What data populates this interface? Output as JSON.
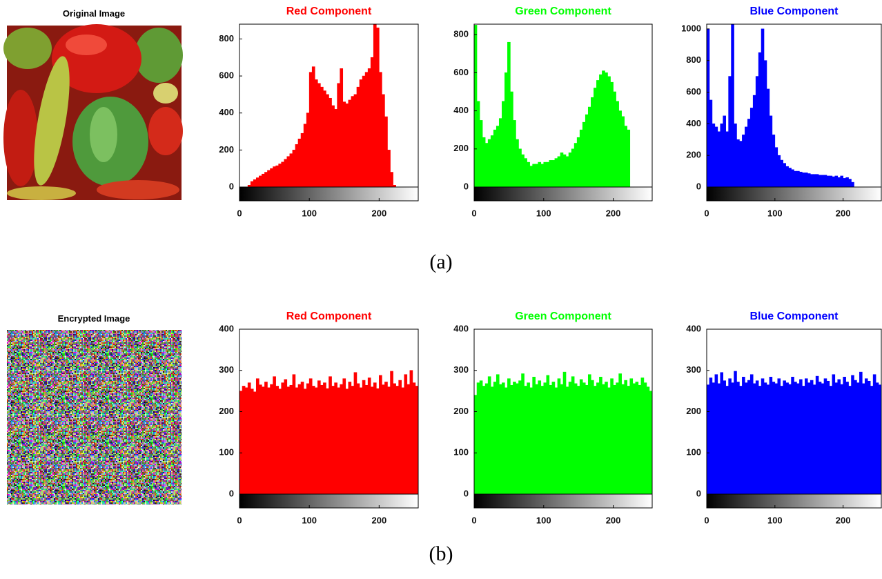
{
  "chart_data": [
    {
      "type": "histogram",
      "title": "Red Component",
      "color": "#ff0000",
      "bins": [
        0,
        4,
        8,
        12,
        16,
        20,
        24,
        28,
        32,
        36,
        40,
        44,
        48,
        52,
        56,
        60,
        64,
        68,
        72,
        76,
        80,
        84,
        88,
        92,
        96,
        100,
        104,
        108,
        112,
        116,
        120,
        124,
        128,
        132,
        136,
        140,
        144,
        148,
        152,
        156,
        160,
        164,
        168,
        172,
        176,
        180,
        184,
        188,
        192,
        196,
        200,
        204,
        208,
        212,
        216,
        220,
        224,
        228,
        232,
        236,
        240,
        244,
        248,
        252,
        256
      ],
      "values": [
        0,
        0,
        0,
        10,
        30,
        40,
        50,
        60,
        70,
        80,
        90,
        100,
        110,
        115,
        125,
        135,
        150,
        165,
        180,
        200,
        230,
        260,
        290,
        340,
        400,
        620,
        650,
        580,
        560,
        540,
        520,
        500,
        480,
        440,
        420,
        560,
        640,
        460,
        450,
        470,
        490,
        500,
        540,
        580,
        600,
        620,
        640,
        700,
        880,
        860,
        620,
        500,
        380,
        200,
        80,
        10,
        0,
        0,
        0,
        0,
        0,
        0,
        0,
        0
      ],
      "xlim": [
        0,
        256
      ],
      "xticks": [
        0,
        100,
        200
      ],
      "ylim": [
        0,
        880
      ],
      "yticks": [
        0,
        200,
        400,
        600,
        800
      ]
    },
    {
      "type": "histogram",
      "title": "Green Component",
      "color": "#00ff00",
      "bins": [
        0,
        4,
        8,
        12,
        16,
        20,
        24,
        28,
        32,
        36,
        40,
        44,
        48,
        52,
        56,
        60,
        64,
        68,
        72,
        76,
        80,
        84,
        88,
        92,
        96,
        100,
        104,
        108,
        112,
        116,
        120,
        124,
        128,
        132,
        136,
        140,
        144,
        148,
        152,
        156,
        160,
        164,
        168,
        172,
        176,
        180,
        184,
        188,
        192,
        196,
        200,
        204,
        208,
        212,
        216,
        220,
        224,
        228,
        232,
        236,
        240,
        244,
        248,
        252,
        256
      ],
      "values": [
        850,
        450,
        350,
        260,
        230,
        250,
        270,
        300,
        320,
        360,
        450,
        600,
        760,
        500,
        350,
        250,
        200,
        170,
        150,
        130,
        110,
        120,
        120,
        130,
        120,
        130,
        130,
        140,
        140,
        150,
        160,
        180,
        170,
        160,
        180,
        200,
        230,
        260,
        300,
        340,
        380,
        420,
        470,
        520,
        560,
        590,
        610,
        600,
        580,
        550,
        500,
        450,
        400,
        370,
        320,
        300,
        0,
        0,
        0,
        0,
        0,
        0,
        0,
        0
      ],
      "xlim": [
        0,
        256
      ],
      "xticks": [
        0,
        100,
        200
      ],
      "ylim": [
        0,
        855
      ],
      "yticks": [
        0,
        200,
        400,
        600,
        800
      ]
    },
    {
      "type": "histogram",
      "title": "Blue Component",
      "color": "#0000ff",
      "bins": [
        0,
        4,
        8,
        12,
        16,
        20,
        24,
        28,
        32,
        36,
        40,
        44,
        48,
        52,
        56,
        60,
        64,
        68,
        72,
        76,
        80,
        84,
        88,
        92,
        96,
        100,
        104,
        108,
        112,
        116,
        120,
        124,
        128,
        132,
        136,
        140,
        144,
        148,
        152,
        156,
        160,
        164,
        168,
        172,
        176,
        180,
        184,
        188,
        192,
        196,
        200,
        204,
        208,
        212,
        216,
        220,
        224,
        228,
        232,
        236,
        240,
        244,
        248,
        252,
        256
      ],
      "values": [
        1000,
        550,
        400,
        380,
        350,
        400,
        450,
        350,
        700,
        1030,
        400,
        300,
        290,
        330,
        380,
        430,
        500,
        580,
        700,
        850,
        1000,
        800,
        620,
        450,
        330,
        250,
        200,
        170,
        150,
        130,
        120,
        110,
        100,
        100,
        95,
        90,
        90,
        85,
        80,
        80,
        80,
        75,
        75,
        75,
        70,
        70,
        65,
        70,
        60,
        70,
        55,
        60,
        50,
        30,
        0,
        0,
        0,
        0,
        0,
        0,
        0,
        0,
        0,
        0
      ],
      "xlim": [
        0,
        256
      ],
      "xticks": [
        0,
        100,
        200
      ],
      "ylim": [
        0,
        1030
      ],
      "yticks": [
        0,
        200,
        400,
        600,
        800,
        1000
      ]
    },
    {
      "type": "histogram",
      "title": "Red Component",
      "color": "#ff0000",
      "bins": [
        0,
        4,
        8,
        12,
        16,
        20,
        24,
        28,
        32,
        36,
        40,
        44,
        48,
        52,
        56,
        60,
        64,
        68,
        72,
        76,
        80,
        84,
        88,
        92,
        96,
        100,
        104,
        108,
        112,
        116,
        120,
        124,
        128,
        132,
        136,
        140,
        144,
        148,
        152,
        156,
        160,
        164,
        168,
        172,
        176,
        180,
        184,
        188,
        192,
        196,
        200,
        204,
        208,
        212,
        216,
        220,
        224,
        228,
        232,
        236,
        240,
        244,
        248,
        252,
        256
      ],
      "values": [
        250,
        262,
        258,
        270,
        255,
        248,
        280,
        265,
        260,
        272,
        258,
        266,
        285,
        262,
        255,
        270,
        278,
        260,
        264,
        290,
        258,
        266,
        272,
        255,
        268,
        280,
        262,
        258,
        275,
        264,
        270,
        256,
        285,
        262,
        270,
        258,
        266,
        280,
        255,
        272,
        262,
        295,
        268,
        258,
        276,
        264,
        282,
        260,
        270,
        256,
        288,
        265,
        272,
        260,
        298,
        268,
        262,
        276,
        258,
        290,
        266,
        300,
        270,
        262
      ],
      "xlim": [
        0,
        256
      ],
      "xticks": [
        0,
        100,
        200
      ],
      "ylim": [
        0,
        400
      ],
      "yticks": [
        0,
        100,
        200,
        300,
        400
      ]
    },
    {
      "type": "histogram",
      "title": "Green Component",
      "color": "#00ff00",
      "bins": [
        0,
        4,
        8,
        12,
        16,
        20,
        24,
        28,
        32,
        36,
        40,
        44,
        48,
        52,
        56,
        60,
        64,
        68,
        72,
        76,
        80,
        84,
        88,
        92,
        96,
        100,
        104,
        108,
        112,
        116,
        120,
        124,
        128,
        132,
        136,
        140,
        144,
        148,
        152,
        156,
        160,
        164,
        168,
        172,
        176,
        180,
        184,
        188,
        192,
        196,
        200,
        204,
        208,
        212,
        216,
        220,
        224,
        228,
        232,
        236,
        240,
        244,
        248,
        252,
        256
      ],
      "values": [
        240,
        270,
        275,
        262,
        268,
        285,
        260,
        272,
        290,
        266,
        270,
        258,
        280,
        264,
        272,
        268,
        275,
        292,
        262,
        270,
        258,
        284,
        266,
        275,
        262,
        270,
        288,
        264,
        272,
        258,
        280,
        266,
        296,
        260,
        272,
        285,
        268,
        262,
        278,
        270,
        264,
        290,
        276,
        262,
        270,
        284,
        266,
        272,
        258,
        280,
        264,
        270,
        292,
        266,
        276,
        262,
        280,
        268,
        272,
        264,
        282,
        270,
        260,
        250
      ],
      "xlim": [
        0,
        256
      ],
      "xticks": [
        0,
        100,
        200
      ],
      "ylim": [
        0,
        400
      ],
      "yticks": [
        0,
        100,
        200,
        300,
        400
      ]
    },
    {
      "type": "histogram",
      "title": "Blue Component",
      "color": "#0000ff",
      "bins": [
        0,
        4,
        8,
        12,
        16,
        20,
        24,
        28,
        32,
        36,
        40,
        44,
        48,
        52,
        56,
        60,
        64,
        68,
        72,
        76,
        80,
        84,
        88,
        92,
        96,
        100,
        104,
        108,
        112,
        116,
        120,
        124,
        128,
        132,
        136,
        140,
        144,
        148,
        152,
        156,
        160,
        164,
        168,
        172,
        176,
        180,
        184,
        188,
        192,
        196,
        200,
        204,
        208,
        212,
        216,
        220,
        224,
        228,
        232,
        236,
        240,
        244,
        248,
        252,
        256
      ],
      "values": [
        265,
        282,
        270,
        290,
        268,
        295,
        275,
        262,
        280,
        270,
        298,
        272,
        262,
        284,
        270,
        276,
        290,
        268,
        275,
        262,
        280,
        270,
        265,
        284,
        272,
        268,
        280,
        262,
        275,
        270,
        266,
        284,
        272,
        268,
        278,
        262,
        280,
        270,
        276,
        265,
        286,
        272,
        268,
        280,
        274,
        262,
        290,
        270,
        278,
        266,
        284,
        272,
        262,
        288,
        276,
        270,
        296,
        268,
        280,
        274,
        262,
        290,
        270,
        265
      ],
      "xlim": [
        0,
        256
      ],
      "xticks": [
        0,
        100,
        200
      ],
      "ylim": [
        0,
        400
      ],
      "yticks": [
        0,
        100,
        200,
        300,
        400
      ]
    }
  ],
  "images": [
    {
      "title": "Original Image"
    },
    {
      "title": "Encrypted Image"
    }
  ],
  "captions": [
    "(a)",
    "(b)"
  ]
}
